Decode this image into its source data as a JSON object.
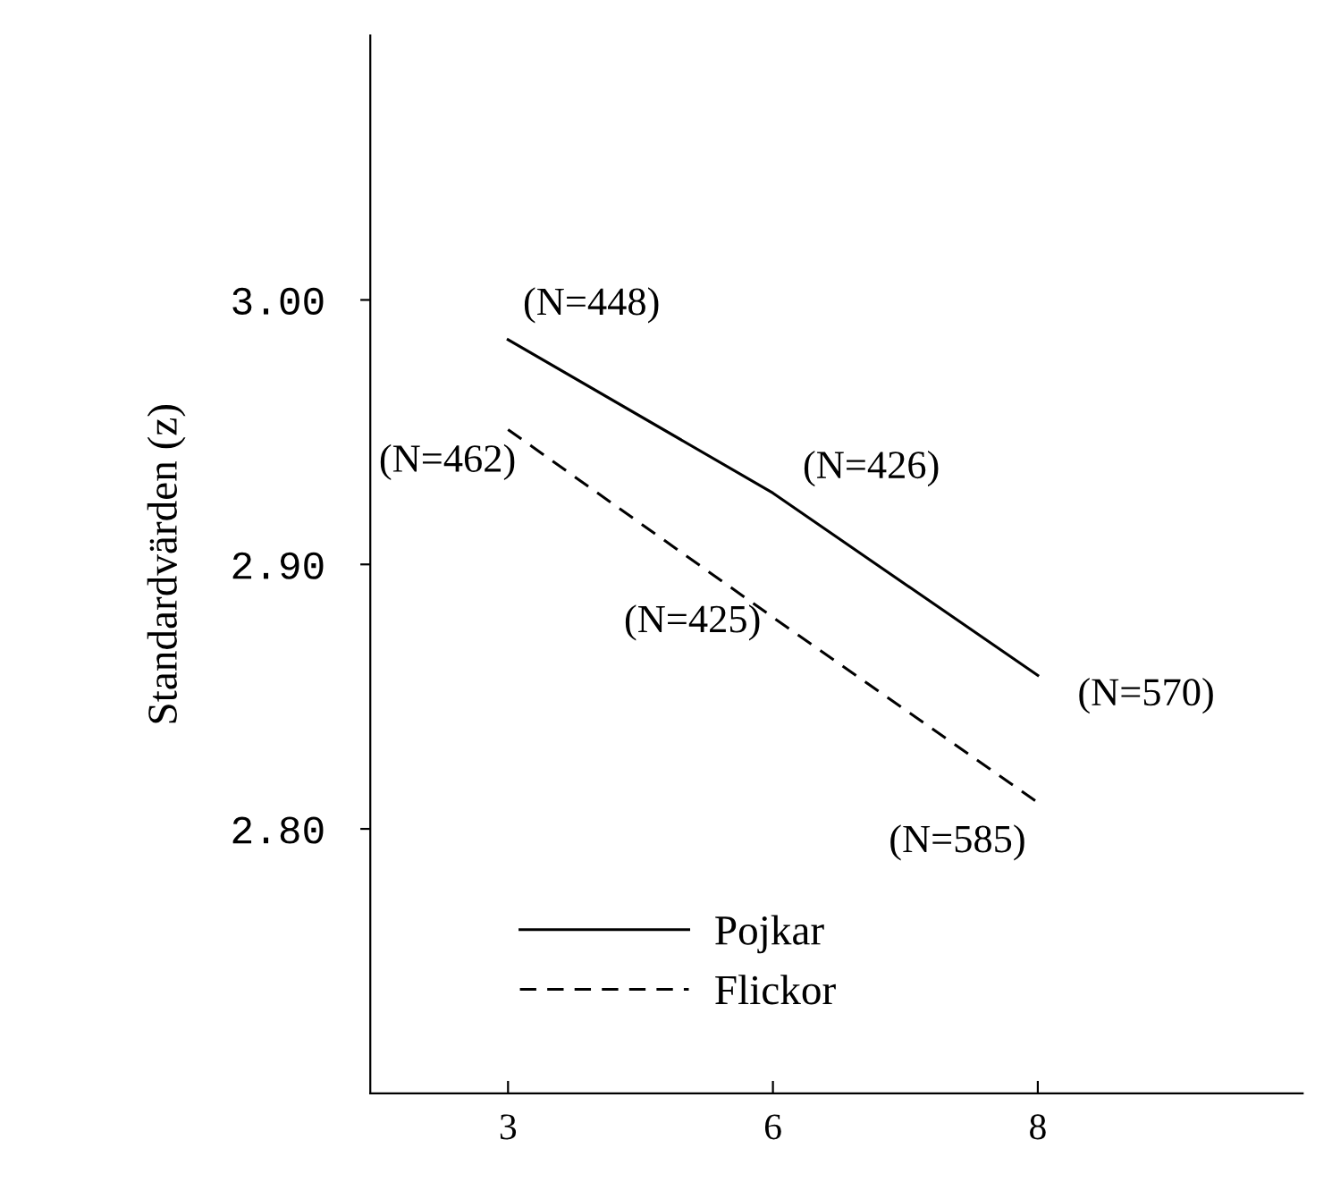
{
  "chart_data": {
    "type": "line",
    "ylabel": "Standardvärden (z)",
    "categories": [
      "3",
      "6",
      "8"
    ],
    "series": [
      {
        "name": "Pojkar",
        "color": "#000000",
        "line_style": "solid",
        "values": [
          2.985,
          2.927,
          2.858
        ]
      },
      {
        "name": "Flickor",
        "color": "#000000",
        "line_style": "dashed",
        "values": [
          2.951,
          2.88,
          2.81
        ]
      }
    ],
    "ylim": [
      2.7,
      3.1
    ],
    "yticks": [
      {
        "value": 2.8,
        "label": "2.80"
      },
      {
        "value": 2.9,
        "label": "2.90"
      },
      {
        "value": 3.0,
        "label": "3.00"
      }
    ],
    "grid": false,
    "legend": "bottom",
    "annotations": [
      {
        "text": "(N=448)",
        "x": "3",
        "y": 2.985
      },
      {
        "text": "(N=426)",
        "x": "6",
        "y": 2.927
      },
      {
        "text": "(N=570)",
        "x": "8",
        "y": 2.858
      },
      {
        "text": "(N=462)",
        "x": "3",
        "y": 2.951
      },
      {
        "text": "(N=425)",
        "x": "6",
        "y": 2.88
      },
      {
        "text": "(N=585)",
        "x": "8",
        "y": 2.81
      }
    ]
  }
}
